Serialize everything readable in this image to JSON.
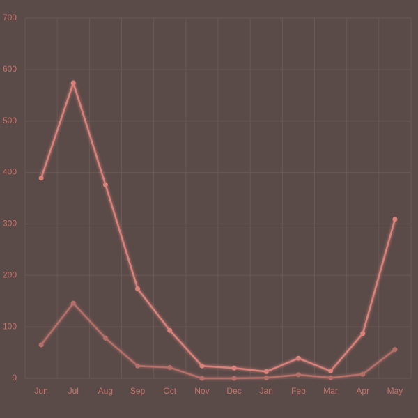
{
  "chart_data": {
    "type": "line",
    "categories": [
      "Jun",
      "Jul",
      "Aug",
      "Sep",
      "Oct",
      "Nov",
      "Dec",
      "Jan",
      "Feb",
      "Mar",
      "Apr",
      "May"
    ],
    "series": [
      {
        "color": "#d9827b",
        "values": [
          389,
          574,
          376,
          174,
          93,
          24,
          20,
          13,
          39,
          14,
          87,
          309
        ]
      },
      {
        "color": "#b56f69",
        "values": [
          65,
          146,
          78,
          24,
          21,
          0,
          0,
          1,
          7,
          1,
          8,
          56
        ]
      }
    ],
    "ylim": [
      0,
      700
    ],
    "yticks": [
      0,
      100,
      200,
      300,
      400,
      500,
      600,
      700
    ],
    "grid": true
  }
}
